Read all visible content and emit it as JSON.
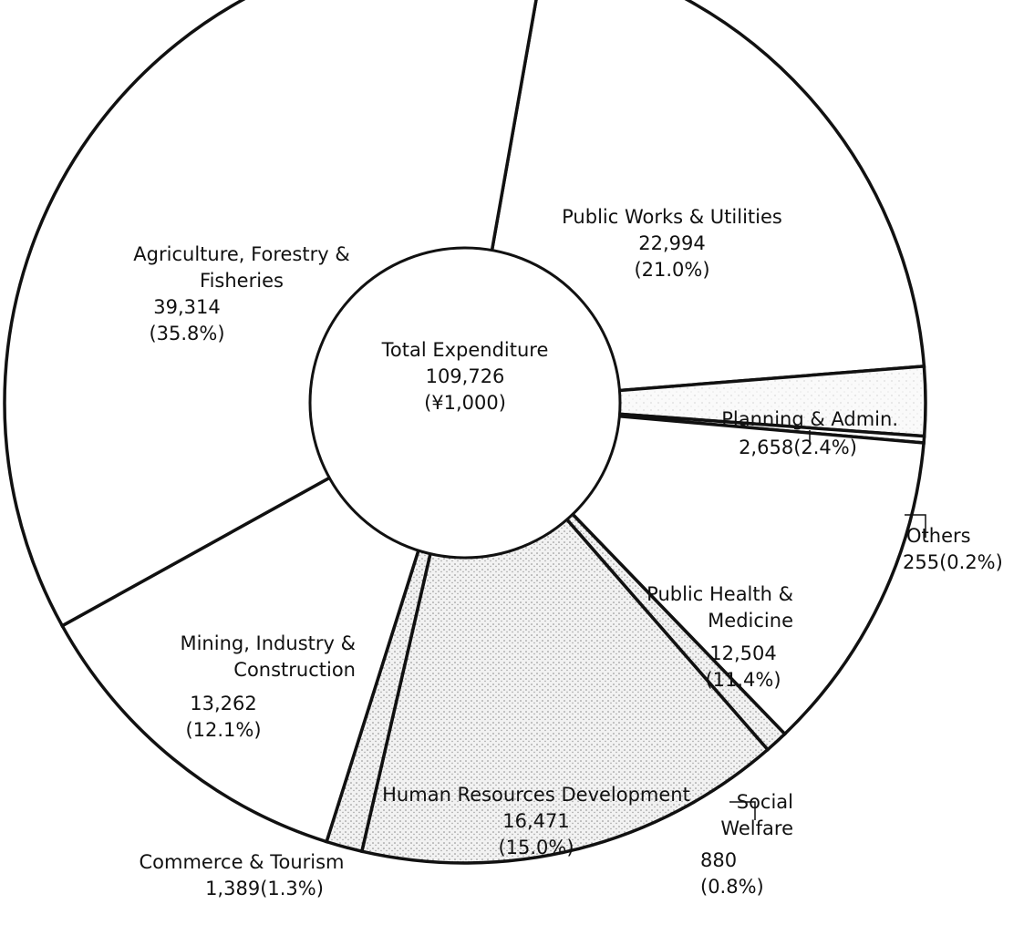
{
  "chart_data": {
    "type": "donut",
    "categories": [
      "Public Works & Utilities",
      "Planning & Admin.",
      "Others",
      "Public Health & Medicine",
      "Social Welfare",
      "Human Resources Development",
      "Commerce & Tourism",
      "Mining, Industry & Construction",
      "Agriculture, Forestry & Fisheries"
    ],
    "values": [
      22994,
      2658,
      255,
      12504,
      880,
      16471,
      1389,
      13262,
      39314
    ],
    "value_labels": [
      "22,994",
      "2,658",
      "255",
      "12,504",
      "880",
      "16,471",
      "1,389",
      "13,262",
      "39,314"
    ],
    "percents": [
      21.0,
      2.4,
      0.2,
      11.4,
      0.8,
      15.0,
      1.3,
      12.1,
      35.8
    ],
    "percent_labels": [
      "(21.0%)",
      "(2.4%)",
      "(0.2%)",
      "(11.4%)",
      "(0.8%)",
      "(15.0%)",
      "(1.3%)",
      "(12.1%)",
      "(35.8%)"
    ],
    "colors": [
      "#ffffff",
      "stipple-light",
      "#ffffff",
      "#ffffff",
      "stipple",
      "stipple",
      "stipple",
      "#ffffff",
      "#ffffff"
    ],
    "center": {
      "title": "Total Expenditure",
      "total_label": "109,726",
      "unit": "(¥1,000)"
    }
  }
}
